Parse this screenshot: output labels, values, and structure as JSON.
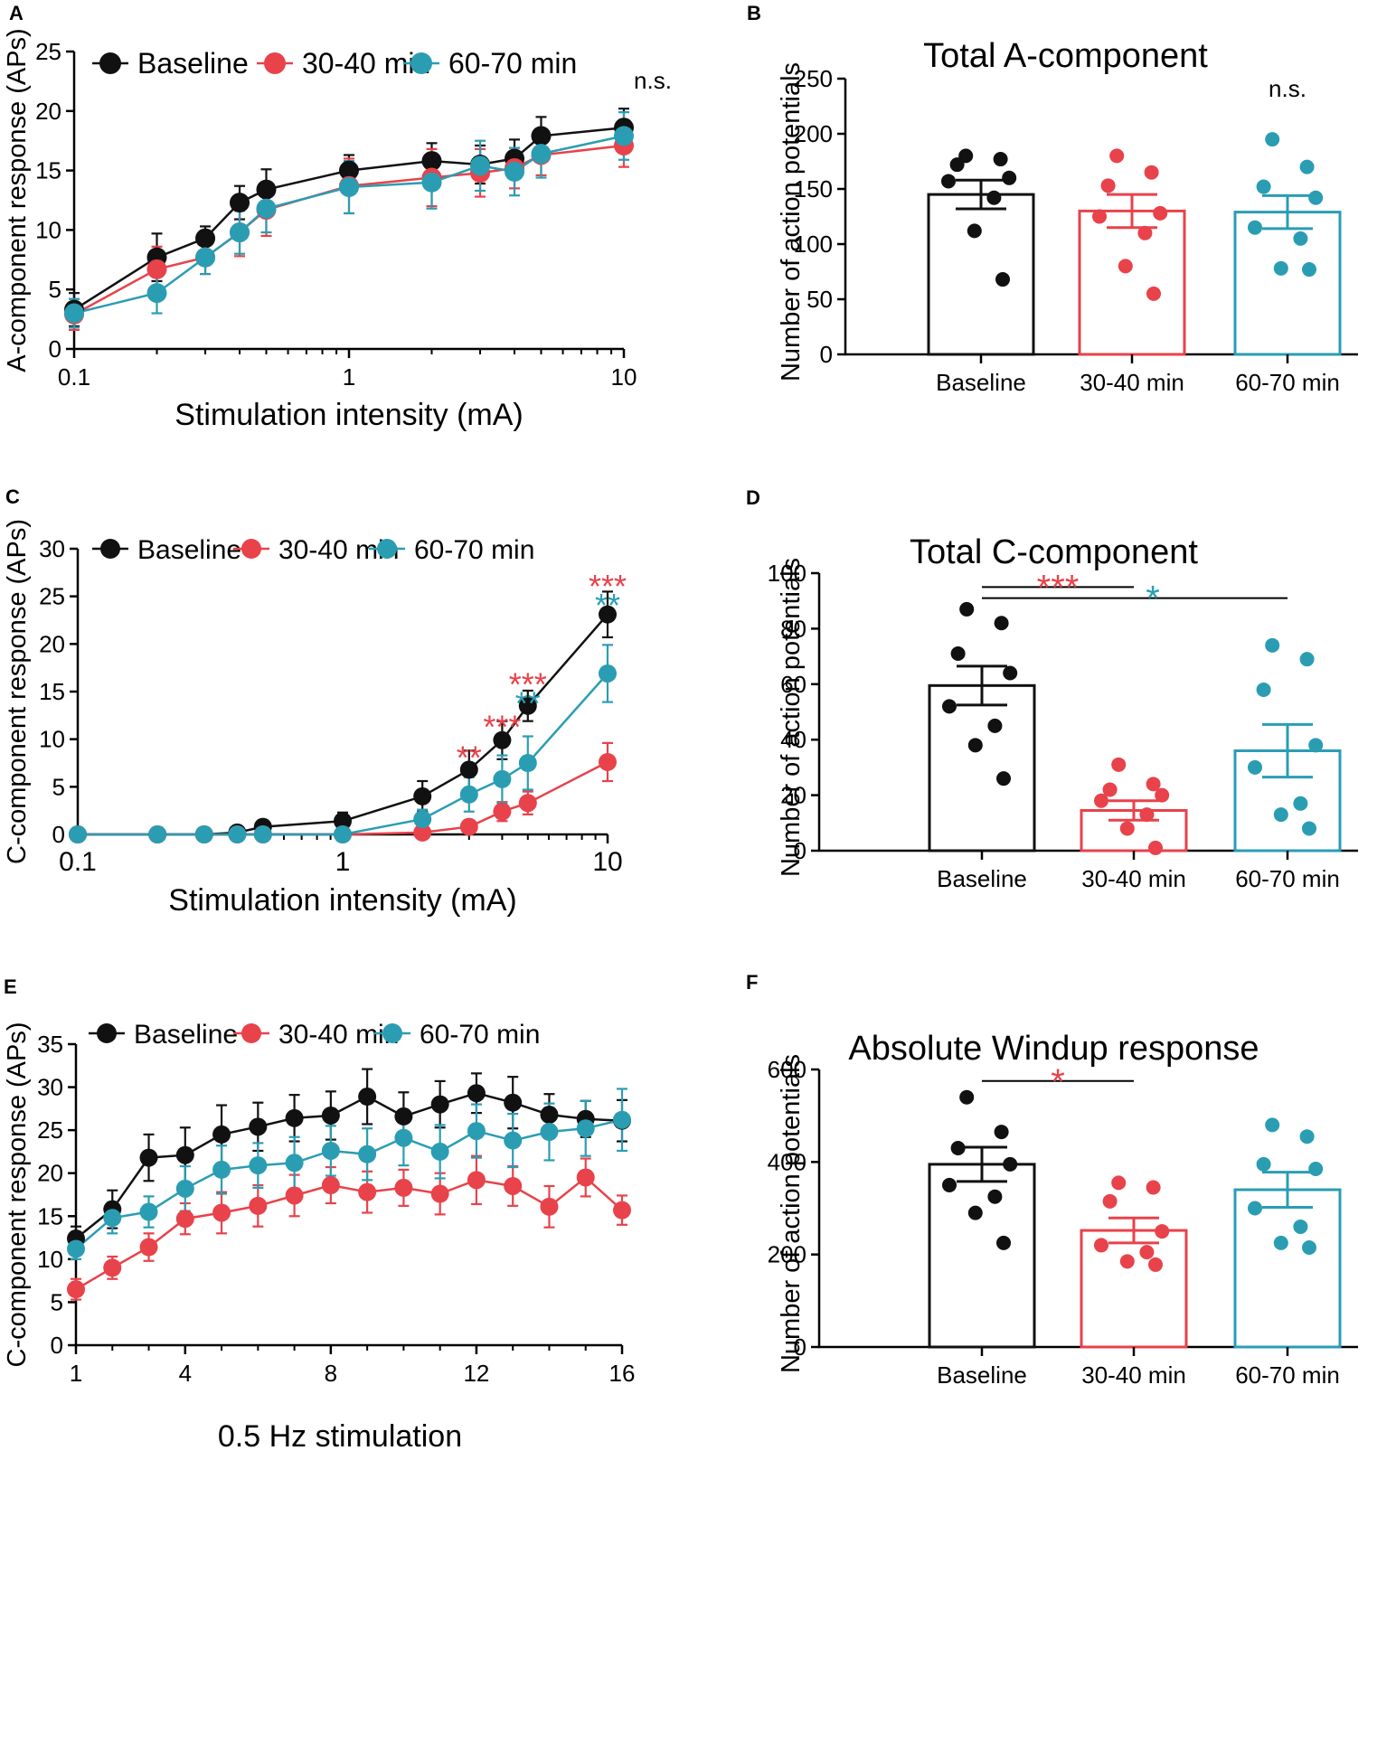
{
  "colors": {
    "baseline": "#111111",
    "min30_40": "#E8424B",
    "min60_70": "#2A9DB3",
    "axis": "#000000"
  },
  "chart_data": [
    {
      "id": "A",
      "panel_label": "A",
      "type": "line",
      "title": "",
      "xlabel": "Stimulation intensity (mA)",
      "ylabel": "A-component response (APs)",
      "xscale": "log",
      "xlim": [
        0.1,
        10
      ],
      "ylim": [
        0,
        25
      ],
      "xticks": [
        0.1,
        1,
        10
      ],
      "xtick_labels": [
        "0.1",
        "1",
        "10"
      ],
      "yticks": [
        0,
        5,
        10,
        15,
        20,
        25
      ],
      "ytick_labels": [
        "0",
        "5",
        "10",
        "15",
        "20",
        "25"
      ],
      "legend": "top",
      "annotations": [
        {
          "text": "n.s.",
          "x": 10,
          "y": 22.5,
          "color": "axis"
        }
      ],
      "series": [
        {
          "name": "Baseline",
          "color": "baseline",
          "x": [
            0.1,
            0.2,
            0.3,
            0.4,
            0.5,
            1,
            2,
            3,
            4,
            5,
            10
          ],
          "y": [
            3.3,
            7.7,
            9.3,
            12.3,
            13.4,
            15.0,
            15.8,
            15.5,
            16.0,
            17.9,
            18.6
          ],
          "err": [
            1.4,
            2.0,
            1.0,
            1.4,
            1.7,
            1.3,
            1.5,
            1.6,
            1.6,
            1.6,
            1.6
          ]
        },
        {
          "name": "30-40 min",
          "color": "min30_40",
          "x": [
            0.1,
            0.2,
            0.3,
            0.4,
            0.5,
            1,
            2,
            3,
            4,
            5,
            10
          ],
          "y": [
            2.9,
            6.7,
            7.7,
            9.8,
            11.7,
            13.7,
            14.4,
            14.8,
            15.2,
            16.3,
            17.1
          ],
          "err": [
            1.3,
            1.9,
            1.4,
            2.0,
            2.2,
            2.3,
            2.4,
            2.0,
            1.7,
            1.7,
            1.8
          ]
        },
        {
          "name": "60-70 min",
          "color": "min60_70",
          "x": [
            0.1,
            0.2,
            0.3,
            0.4,
            0.5,
            1,
            2,
            3,
            4,
            5,
            10
          ],
          "y": [
            3.0,
            4.7,
            7.7,
            9.8,
            11.8,
            13.6,
            14.0,
            15.4,
            14.9,
            16.4,
            17.9
          ],
          "err": [
            1.2,
            1.7,
            1.4,
            1.8,
            2.0,
            2.2,
            2.2,
            2.1,
            2.0,
            2.0,
            2.0
          ]
        }
      ]
    },
    {
      "id": "B",
      "panel_label": "B",
      "type": "bar",
      "title": "Total A-component",
      "xlabel": "",
      "ylabel": "Number of action potentials",
      "ylim": [
        0,
        250
      ],
      "yticks": [
        0,
        50,
        100,
        150,
        200,
        250
      ],
      "ytick_labels": [
        "0",
        "50",
        "100",
        "150",
        "200",
        "250"
      ],
      "categories": [
        "Baseline",
        "30-40 min",
        "60-70 min"
      ],
      "values": [
        145,
        130,
        129
      ],
      "sem": [
        13,
        15,
        15
      ],
      "points": [
        [
          180,
          177,
          172,
          160,
          157,
          142,
          112,
          68
        ],
        [
          180,
          165,
          153,
          128,
          125,
          110,
          80,
          55
        ],
        [
          195,
          170,
          152,
          142,
          115,
          105,
          78,
          77
        ]
      ],
      "annotations": [
        {
          "text": "n.s.",
          "category": 2,
          "y": 240,
          "color": "axis"
        }
      ],
      "brackets": []
    },
    {
      "id": "C",
      "panel_label": "C",
      "type": "line",
      "title": "",
      "xlabel": "Stimulation intensity (mA)",
      "ylabel": "C-component response (APs)",
      "xscale": "log",
      "xlim": [
        0.1,
        10
      ],
      "ylim": [
        0,
        30
      ],
      "xticks": [
        0.1,
        1,
        10
      ],
      "xtick_labels": [
        "0.1",
        "1",
        "10"
      ],
      "yticks": [
        0,
        5,
        10,
        15,
        20,
        25,
        30
      ],
      "ytick_labels": [
        "0",
        "5",
        "10",
        "15",
        "20",
        "25",
        "30"
      ],
      "legend": "top",
      "annotations": [
        {
          "text": "**",
          "x": 3,
          "y": 8.6,
          "color": "min30_40"
        },
        {
          "text": "***",
          "x": 4,
          "y": 11.8,
          "color": "min30_40"
        },
        {
          "text": "***",
          "x": 5,
          "y": 16.3,
          "color": "min30_40"
        },
        {
          "text": "**",
          "x": 5,
          "y": 14.3,
          "color": "min60_70"
        },
        {
          "text": "***",
          "x": 10,
          "y": 26.6,
          "color": "min30_40"
        },
        {
          "text": "**",
          "x": 10,
          "y": 24.6,
          "color": "min60_70"
        }
      ],
      "series": [
        {
          "name": "Baseline",
          "color": "baseline",
          "x": [
            0.1,
            0.2,
            0.3,
            0.4,
            0.5,
            1,
            2,
            3,
            4,
            5,
            10
          ],
          "y": [
            0,
            0,
            0,
            0.2,
            0.8,
            1.4,
            4.0,
            6.8,
            9.9,
            13.5,
            23.1
          ],
          "err": [
            0,
            0,
            0,
            0.2,
            0.3,
            0.9,
            1.6,
            2.0,
            2.0,
            1.6,
            2.4
          ]
        },
        {
          "name": "30-40 min",
          "color": "min30_40",
          "x": [
            0.1,
            0.2,
            0.3,
            0.4,
            0.5,
            1,
            2,
            3,
            4,
            5,
            10
          ],
          "y": [
            0,
            0,
            0,
            0,
            0,
            0,
            0.2,
            0.8,
            2.4,
            3.3,
            7.6
          ],
          "err": [
            0,
            0,
            0,
            0,
            0,
            0,
            0.2,
            0.4,
            1.0,
            1.2,
            2.0
          ]
        },
        {
          "name": "60-70 min",
          "color": "min60_70",
          "x": [
            0.1,
            0.2,
            0.3,
            0.4,
            0.5,
            1,
            2,
            3,
            4,
            5,
            10
          ],
          "y": [
            0,
            0,
            0,
            0,
            0,
            0,
            1.6,
            4.2,
            5.8,
            7.5,
            16.9
          ],
          "err": [
            0,
            0,
            0,
            0,
            0,
            0,
            1.0,
            1.8,
            2.5,
            2.8,
            3.0
          ]
        }
      ]
    },
    {
      "id": "D",
      "panel_label": "D",
      "type": "bar",
      "title": "Total C-component",
      "xlabel": "",
      "ylabel": "Number of action potentials",
      "ylim": [
        0,
        100
      ],
      "yticks": [
        0,
        20,
        40,
        60,
        80,
        100
      ],
      "ytick_labels": [
        "0",
        "20",
        "40",
        "60",
        "80",
        "100"
      ],
      "categories": [
        "Baseline",
        "30-40 min",
        "60-70 min"
      ],
      "values": [
        59.5,
        14.5,
        36.0
      ],
      "sem": [
        7.0,
        3.5,
        9.5
      ],
      "points": [
        [
          87,
          82,
          71,
          64,
          52,
          45,
          38,
          26
        ],
        [
          31,
          24,
          22,
          20,
          18,
          13,
          8,
          1
        ],
        [
          74,
          69,
          58,
          38,
          30,
          17,
          13,
          8
        ]
      ],
      "annotations": [],
      "brackets": [
        {
          "from": 0,
          "to": 1,
          "y": 95,
          "text": "***",
          "color": "min30_40"
        },
        {
          "from": 0,
          "to": 2,
          "y": 91,
          "text": "*",
          "color": "min60_70"
        }
      ]
    },
    {
      "id": "E",
      "panel_label": "E",
      "type": "line",
      "title": "",
      "xlabel": "0.5 Hz stimulation",
      "ylabel": "C-component response (APs)",
      "xscale": "linear",
      "xlim": [
        1,
        16
      ],
      "ylim": [
        0,
        35
      ],
      "xticks": [
        1,
        4,
        8,
        12,
        16
      ],
      "xtick_labels": [
        "1",
        "4",
        "8",
        "12",
        "16"
      ],
      "yticks": [
        0,
        5,
        10,
        15,
        20,
        25,
        30,
        35
      ],
      "ytick_labels": [
        "0",
        "5",
        "10",
        "15",
        "20",
        "25",
        "30",
        "35"
      ],
      "legend": "top",
      "annotations": [],
      "series": [
        {
          "name": "Baseline",
          "color": "baseline",
          "x": [
            1,
            2,
            3,
            4,
            5,
            6,
            7,
            8,
            9,
            10,
            11,
            12,
            13,
            14,
            15,
            16
          ],
          "y": [
            12.4,
            15.8,
            21.8,
            22.1,
            24.5,
            25.4,
            26.4,
            26.7,
            28.9,
            26.6,
            28.0,
            29.3,
            28.2,
            26.8,
            26.3,
            26.1
          ],
          "err": [
            1.4,
            2.2,
            2.7,
            3.2,
            3.4,
            2.8,
            2.7,
            2.8,
            3.2,
            2.8,
            2.7,
            2.3,
            3.0,
            2.4,
            2.1,
            2.4
          ]
        },
        {
          "name": "30-40 min",
          "color": "min30_40",
          "x": [
            1,
            2,
            3,
            4,
            5,
            6,
            7,
            8,
            9,
            10,
            11,
            12,
            13,
            14,
            15,
            16
          ],
          "y": [
            6.5,
            9.0,
            11.4,
            14.7,
            15.4,
            16.2,
            17.4,
            18.6,
            17.8,
            18.3,
            17.6,
            19.2,
            18.5,
            16.1,
            19.5,
            15.7
          ],
          "err": [
            1.2,
            1.3,
            1.6,
            1.8,
            2.4,
            2.4,
            2.4,
            2.1,
            2.4,
            2.1,
            2.4,
            2.8,
            2.3,
            2.4,
            2.2,
            1.7
          ]
        },
        {
          "name": "60-70 min",
          "color": "min60_70",
          "x": [
            1,
            2,
            3,
            4,
            5,
            6,
            7,
            8,
            9,
            10,
            11,
            12,
            13,
            14,
            15,
            16
          ],
          "y": [
            11.2,
            14.8,
            15.5,
            18.2,
            20.4,
            20.9,
            21.2,
            22.6,
            22.2,
            24.1,
            22.5,
            24.9,
            23.8,
            24.8,
            25.2,
            26.2
          ],
          "err": [
            1.2,
            1.8,
            1.8,
            2.6,
            2.8,
            2.6,
            3.0,
            2.9,
            3.0,
            3.2,
            3.1,
            3.1,
            3.1,
            3.3,
            3.2,
            3.6
          ]
        }
      ]
    },
    {
      "id": "F",
      "panel_label": "F",
      "type": "bar",
      "title": "Absolute Windup response",
      "xlabel": "",
      "ylabel": "Number of action potentials",
      "ylim": [
        0,
        600
      ],
      "yticks": [
        0,
        200,
        400,
        600
      ],
      "ytick_labels": [
        "0",
        "200",
        "400",
        "600"
      ],
      "categories": [
        "Baseline",
        "30-40 min",
        "60-70 min"
      ],
      "values": [
        395,
        252,
        340
      ],
      "sem": [
        37,
        27,
        38
      ],
      "points": [
        [
          540,
          465,
          430,
          395,
          350,
          325,
          290,
          225
        ],
        [
          355,
          345,
          315,
          250,
          220,
          205,
          185,
          178
        ],
        [
          480,
          455,
          395,
          385,
          300,
          260,
          225,
          215
        ]
      ],
      "annotations": [],
      "brackets": [
        {
          "from": 0,
          "to": 1,
          "y": 575,
          "text": "*",
          "color": "min30_40"
        }
      ]
    }
  ]
}
